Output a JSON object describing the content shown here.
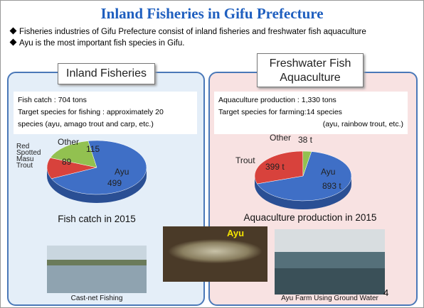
{
  "header": {
    "title": "Inland Fisheries in Gifu Prefecture",
    "bullets": [
      "Fisheries industries of Gifu Prefecture consist of inland fisheries and freshwater fish aquaculture",
      "Ayu is the most important fish species in Gifu."
    ]
  },
  "panels": [
    {
      "heading": "Inland Fisheries",
      "lines": [
        "Fish catch : 704 tons",
        "Target species for fishing : approximately 20",
        "species (ayu, amago trout and carp, etc.)"
      ]
    },
    {
      "heading": "Freshwater Fish Aquaculture",
      "lines": [
        "Aquaculture production : 1,330 tons",
        "Target species for farming:14 species",
        "(ayu, rainbow trout, etc.)"
      ]
    }
  ],
  "chart_data": [
    {
      "type": "pie",
      "title": "Fish catch in 2015",
      "categories": [
        "Ayu",
        "Red Spotted Masu Trout",
        "Other"
      ],
      "values": [
        499,
        89,
        115
      ],
      "colors": [
        "#3f6fc6",
        "#d8423c",
        "#92c150"
      ]
    },
    {
      "type": "pie",
      "title": "Aquaculture production in 2015",
      "categories": [
        "Ayu",
        "Trout",
        "Other"
      ],
      "values": [
        893,
        399,
        38
      ],
      "value_labels": [
        "893 t",
        "399 t",
        "38 t"
      ],
      "colors": [
        "#3f6fc6",
        "#d8423c",
        "#92c150"
      ]
    }
  ],
  "photos": {
    "captions": [
      "Cast-net Fishing",
      "Ayu Farm Using Ground Water"
    ],
    "label": "Ayu"
  },
  "page_number": "4"
}
